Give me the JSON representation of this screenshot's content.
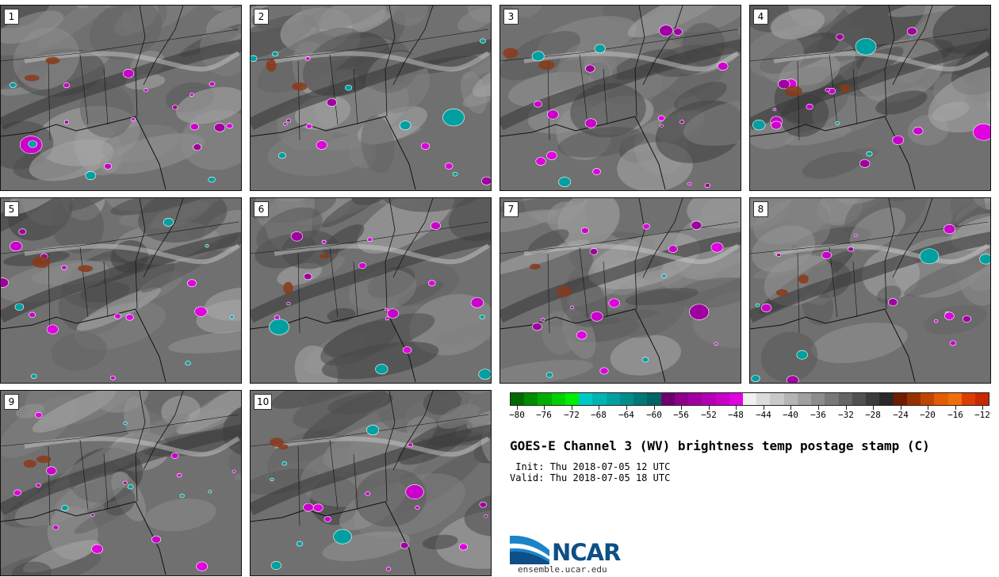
{
  "panels": [
    "1",
    "2",
    "3",
    "4",
    "5",
    "6",
    "7",
    "8",
    "9",
    "10"
  ],
  "colorbar": {
    "colors": [
      "#006a00",
      "#008c00",
      "#00ae00",
      "#00d000",
      "#00ee00",
      "#00c8c8",
      "#00b4b4",
      "#00a0a0",
      "#008c8c",
      "#007878",
      "#006464",
      "#6e006e",
      "#8c008c",
      "#a000a0",
      "#b400b4",
      "#c800c8",
      "#e000e0",
      "#f0f0f0",
      "#dcdcdc",
      "#c8c8c8",
      "#b4b4b4",
      "#a0a0a0",
      "#8c8c8c",
      "#787878",
      "#646464",
      "#505050",
      "#3c3c3c",
      "#282828",
      "#6e1c00",
      "#963200",
      "#be4600",
      "#e65a00",
      "#f06e0a",
      "#dc3c00",
      "#c82800"
    ],
    "tick_labels": [
      "−80",
      "−76",
      "−72",
      "−68",
      "−64",
      "−60",
      "−56",
      "−52",
      "−48",
      "−44",
      "−40",
      "−36",
      "−32",
      "−28",
      "−24",
      "−20",
      "−16",
      "−12"
    ]
  },
  "title": "GOES-E Channel 3 (WV) brightness temp postage stamp (C)",
  "init": " Init: Thu 2018-07-05 12 UTC",
  "valid": "Valid: Thu 2018-07-05 18 UTC",
  "logo": {
    "word": "NCAR",
    "url": "ensemble.ucar.edu"
  }
}
